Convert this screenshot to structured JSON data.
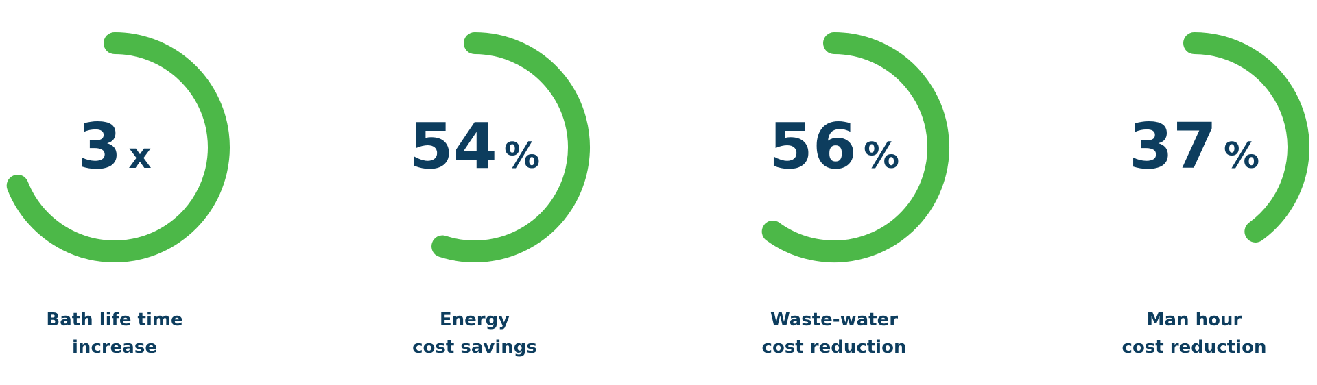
{
  "stats": [
    {
      "value": 3,
      "unit": "x",
      "arc": 69,
      "label": [
        "Bath life time",
        "increase"
      ]
    },
    {
      "value": 54,
      "unit": "%",
      "arc": 55,
      "label": [
        "Energy",
        "cost savings"
      ]
    },
    {
      "value": 56,
      "unit": "%",
      "arc": 60,
      "label": [
        "Waste-water",
        "cost reduction"
      ]
    },
    {
      "value": 37,
      "unit": "%",
      "arc": 40,
      "label": [
        "Man hour",
        "cost reduction"
      ]
    }
  ],
  "style": {
    "arc_color": "#4cb848",
    "text_color": "#0d3d5e"
  }
}
